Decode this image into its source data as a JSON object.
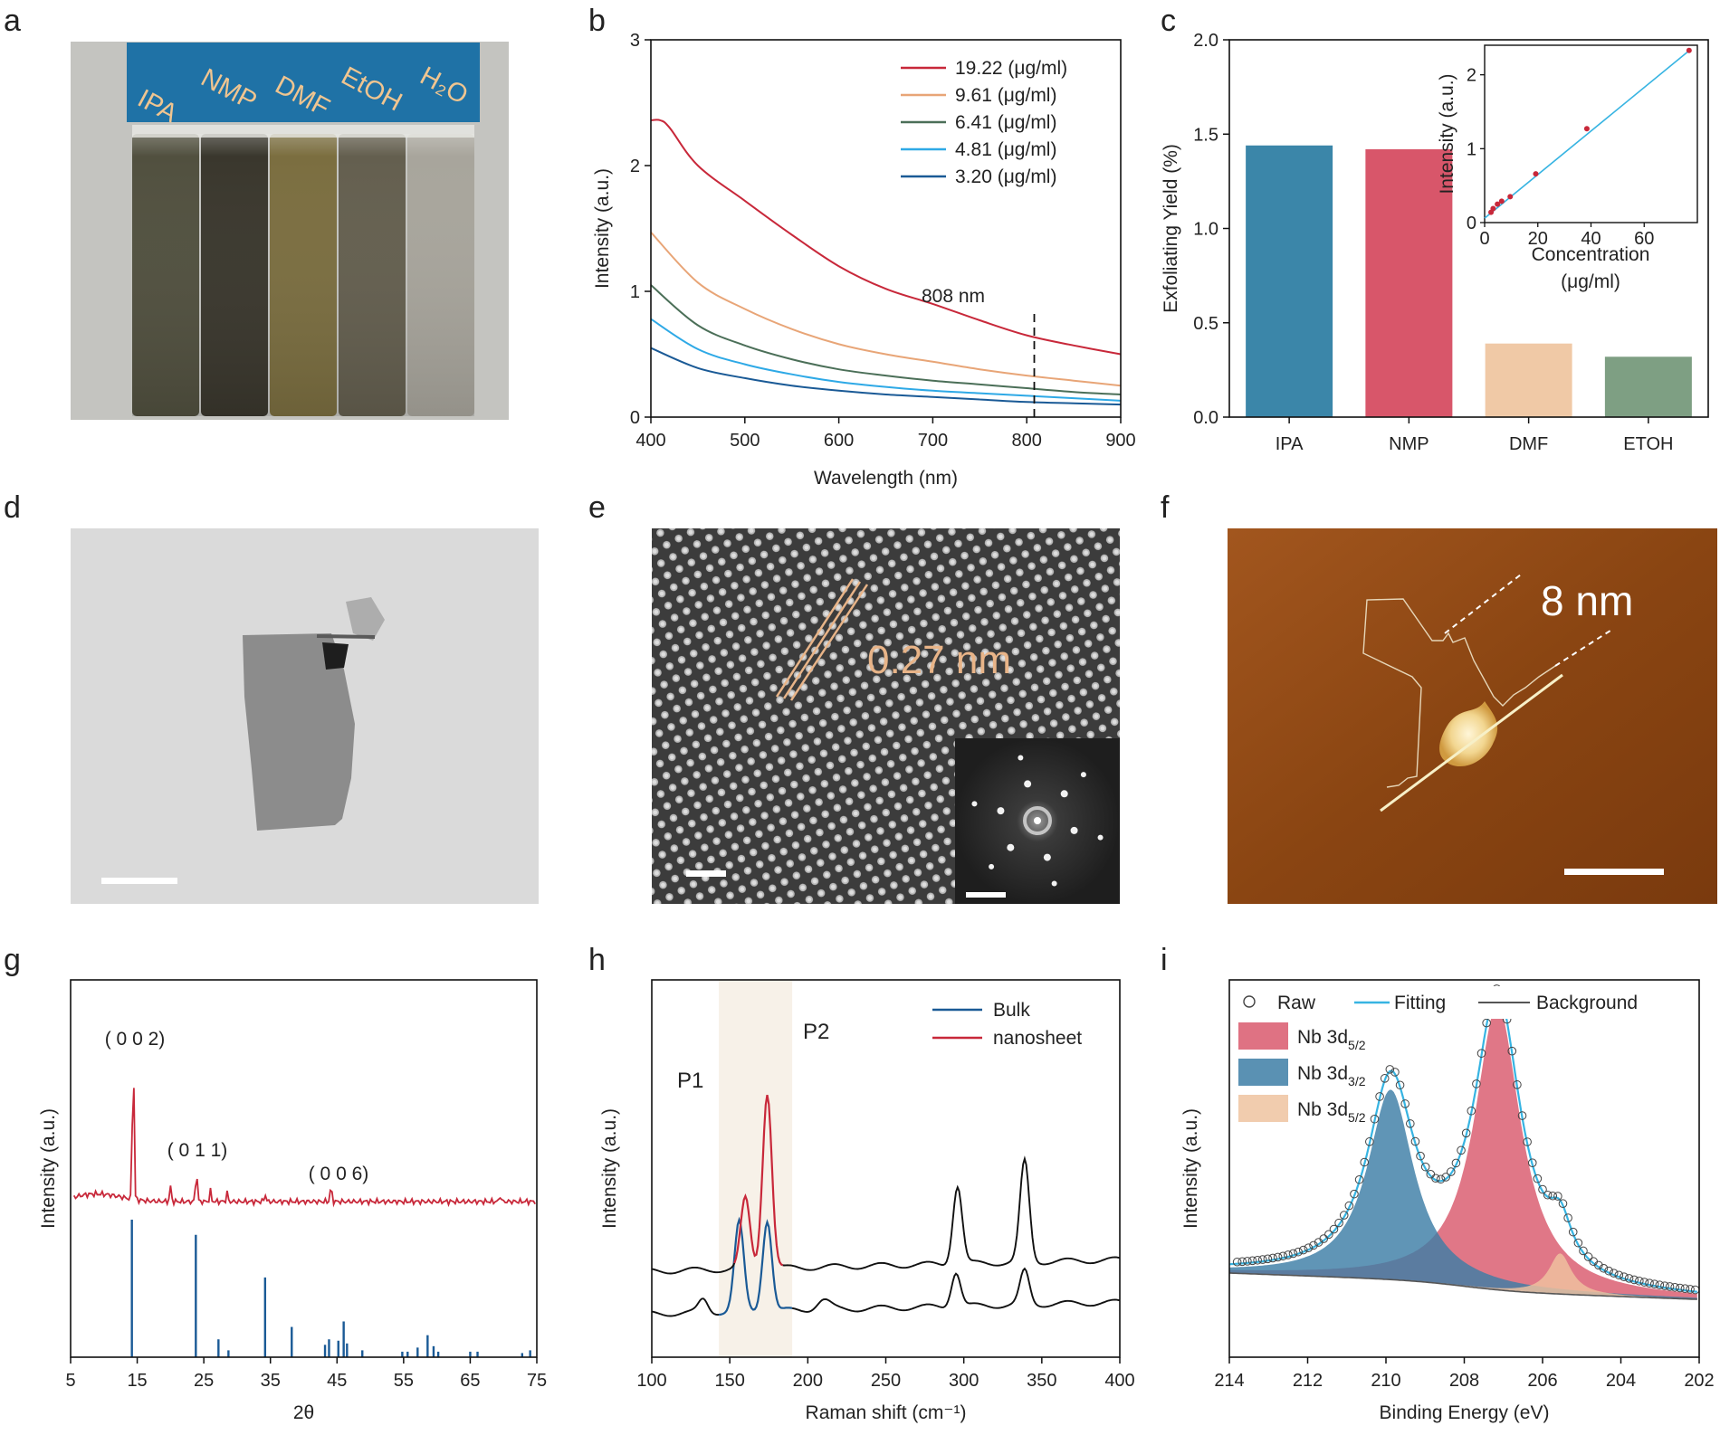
{
  "panels": {
    "a": {
      "label": "a",
      "solvents": [
        "IPA",
        "NMP",
        "DMF",
        "EtOH",
        "H₂O"
      ]
    },
    "d": {
      "label": "d"
    },
    "e": {
      "label": "e",
      "annotation": "0.27 nm"
    },
    "f": {
      "label": "f",
      "annotation": "8 nm"
    }
  },
  "colors": {
    "red": "#c8283a",
    "peach": "#e8a577",
    "green": "#4b6f58",
    "lightblue": "#2ea9e6",
    "blue": "#1a5a96",
    "bar_ipa": "#3b86a9",
    "bar_nmp": "#d8566a",
    "bar_dmf": "#f0c9a6",
    "bar_etoh": "#7e9f83",
    "fit": "#37b4e2",
    "xps_red": "#d9596d",
    "xps_blue": "#3d7ea6",
    "xps_peach": "#efc3a0"
  },
  "chart_data": [
    {
      "id": "b",
      "panel_label": "b",
      "type": "line",
      "xlabel": "Wavelength (nm)",
      "ylabel": "Intensity (a.u.)",
      "xlim": [
        400,
        900
      ],
      "ylim": [
        0,
        3
      ],
      "xticks": [
        400,
        500,
        600,
        700,
        800,
        900
      ],
      "yticks": [
        0,
        1,
        2,
        3
      ],
      "annotation": "808 nm",
      "marker_x": 808,
      "legend_position": "top-right",
      "series": [
        {
          "name": "19.22 (μg/ml)",
          "color": "#c8283a",
          "x": [
            400,
            410,
            420,
            450,
            500,
            550,
            600,
            650,
            700,
            750,
            800,
            850,
            900
          ],
          "y": [
            2.36,
            2.36,
            2.3,
            2.0,
            1.72,
            1.45,
            1.2,
            1.02,
            0.9,
            0.77,
            0.65,
            0.57,
            0.5
          ]
        },
        {
          "name": "9.61 (μg/ml)",
          "color": "#e8a577",
          "x": [
            400,
            450,
            500,
            550,
            600,
            650,
            700,
            750,
            800,
            850,
            900
          ],
          "y": [
            1.47,
            1.07,
            0.86,
            0.7,
            0.58,
            0.5,
            0.44,
            0.38,
            0.33,
            0.29,
            0.25
          ]
        },
        {
          "name": "6.41 (μg/ml)",
          "color": "#4b6f58",
          "x": [
            400,
            450,
            500,
            550,
            600,
            650,
            700,
            750,
            800,
            850,
            900
          ],
          "y": [
            1.05,
            0.73,
            0.57,
            0.46,
            0.38,
            0.33,
            0.29,
            0.26,
            0.23,
            0.2,
            0.18
          ]
        },
        {
          "name": "4.81 (μg/ml)",
          "color": "#2ea9e6",
          "x": [
            400,
            450,
            500,
            550,
            600,
            650,
            700,
            750,
            800,
            850,
            900
          ],
          "y": [
            0.78,
            0.54,
            0.42,
            0.34,
            0.28,
            0.24,
            0.21,
            0.19,
            0.17,
            0.15,
            0.13
          ]
        },
        {
          "name": "3.20 (μg/ml)",
          "color": "#1a5a96",
          "x": [
            400,
            450,
            500,
            550,
            600,
            650,
            700,
            750,
            800,
            850,
            900
          ],
          "y": [
            0.55,
            0.39,
            0.31,
            0.25,
            0.21,
            0.18,
            0.16,
            0.14,
            0.12,
            0.11,
            0.1
          ]
        }
      ]
    },
    {
      "id": "c",
      "panel_label": "c",
      "type": "bar",
      "ylabel": "Exfoliating Yield (%)",
      "categories": [
        "IPA",
        "NMP",
        "DMF",
        "ETOH"
      ],
      "values": [
        1.44,
        1.42,
        0.39,
        0.32
      ],
      "colors": [
        "#3b86a9",
        "#d8566a",
        "#f0c9a6",
        "#7e9f83"
      ],
      "ylim": [
        0,
        2.0
      ],
      "yticks": [
        "0.0",
        "0.5",
        "1.0",
        "1.5",
        "2.0"
      ],
      "inset": {
        "type": "scatter",
        "xlabel": [
          "Concentration",
          "(μg/ml)"
        ],
        "ylabel": "Intensity (a.u.)",
        "xlim": [
          0,
          80
        ],
        "ylim": [
          0,
          2.4
        ],
        "xticks": [
          0,
          20,
          40,
          60
        ],
        "yticks": [
          0,
          1,
          2
        ],
        "x": [
          2.4,
          3.2,
          4.81,
          6.41,
          9.61,
          19.22,
          38.44,
          76.88
        ],
        "y": [
          0.14,
          0.19,
          0.25,
          0.29,
          0.35,
          0.66,
          1.27,
          2.33
        ],
        "fit": [
          [
            0,
            0.06
          ],
          [
            77,
            2.33
          ]
        ]
      }
    },
    {
      "id": "g",
      "panel_label": "g",
      "type": "line",
      "xlabel": "2θ",
      "ylabel": "Intensity (a.u.)",
      "xlim": [
        5,
        75
      ],
      "xticks": [
        5,
        15,
        25,
        35,
        45,
        55,
        65,
        75
      ],
      "peak_labels": [
        {
          "text": "( 0 0 2)",
          "x": 14.5
        },
        {
          "text": "( 0 1 1)",
          "x": 23.8
        },
        {
          "text": "( 0 0 6)",
          "x": 44.0
        }
      ],
      "pattern_peaks": [
        {
          "x": 14.4,
          "h": 1.0
        },
        {
          "x": 20.0,
          "h": 0.1
        },
        {
          "x": 23.9,
          "h": 0.21
        },
        {
          "x": 26.0,
          "h": 0.07
        },
        {
          "x": 28.5,
          "h": 0.06
        },
        {
          "x": 34.2,
          "h": 0.05
        },
        {
          "x": 44.1,
          "h": 0.1
        },
        {
          "x": 69.5,
          "h": 0.04
        }
      ],
      "reference_lines": [
        {
          "x": 14.2,
          "h": 1.0
        },
        {
          "x": 23.8,
          "h": 0.89
        },
        {
          "x": 27.2,
          "h": 0.13
        },
        {
          "x": 28.7,
          "h": 0.05
        },
        {
          "x": 34.2,
          "h": 0.58
        },
        {
          "x": 38.2,
          "h": 0.22
        },
        {
          "x": 43.2,
          "h": 0.09
        },
        {
          "x": 43.8,
          "h": 0.13
        },
        {
          "x": 45.2,
          "h": 0.12
        },
        {
          "x": 46.0,
          "h": 0.26
        },
        {
          "x": 46.5,
          "h": 0.1
        },
        {
          "x": 48.8,
          "h": 0.05
        },
        {
          "x": 54.8,
          "h": 0.04
        },
        {
          "x": 55.6,
          "h": 0.04
        },
        {
          "x": 57.1,
          "h": 0.07
        },
        {
          "x": 58.6,
          "h": 0.16
        },
        {
          "x": 59.5,
          "h": 0.08
        },
        {
          "x": 60.2,
          "h": 0.04
        },
        {
          "x": 65.0,
          "h": 0.04
        },
        {
          "x": 66.1,
          "h": 0.04
        },
        {
          "x": 72.8,
          "h": 0.03
        },
        {
          "x": 74.0,
          "h": 0.05
        }
      ]
    },
    {
      "id": "h",
      "panel_label": "h",
      "type": "line",
      "xlabel": "Raman shift (cm⁻¹)",
      "ylabel": "Intensity (a.u.)",
      "xlim": [
        100,
        400
      ],
      "xticks": [
        100,
        150,
        200,
        250,
        300,
        350,
        400
      ],
      "highlight_range": [
        143,
        190
      ],
      "peak_labels": [
        "P1",
        "P2"
      ],
      "legend_position": "top-right",
      "series": [
        {
          "name": "Bulk",
          "color": "#1a5a96",
          "peaks": [
            {
              "x": 133,
              "h": 0.12
            },
            {
              "x": 156,
              "h": 0.82
            },
            {
              "x": 174,
              "h": 0.84
            },
            {
              "x": 295,
              "h": 0.32
            },
            {
              "x": 339,
              "h": 0.31
            }
          ]
        },
        {
          "name": "nanosheet",
          "color": "#c8283a",
          "peaks": [
            {
              "x": 160,
              "h": 0.65
            },
            {
              "x": 174,
              "h": 1.62
            },
            {
              "x": 296,
              "h": 0.72
            },
            {
              "x": 339,
              "h": 0.93
            }
          ]
        }
      ]
    },
    {
      "id": "i",
      "panel_label": "i",
      "type": "area",
      "xlabel": "Binding Energy (eV)",
      "ylabel": "Intensity (a.u.)",
      "xlim": [
        214,
        202
      ],
      "xticks": [
        214,
        212,
        210,
        208,
        206,
        204,
        202
      ],
      "legend": [
        "Raw",
        "Fitting",
        "Background"
      ],
      "components": [
        {
          "name": "Nb 3d",
          "sub": "5/2",
          "center": 207.15,
          "height": 0.84,
          "width": 0.72,
          "color": "#d9596d"
        },
        {
          "name": "Nb 3d",
          "sub": "3/2",
          "center": 209.88,
          "height": 0.56,
          "width": 0.72,
          "color": "#3d7ea6"
        },
        {
          "name": "Nb 3d",
          "sub": "5/2",
          "center": 205.55,
          "height": 0.12,
          "width": 0.35,
          "color": "#efc3a0"
        }
      ]
    }
  ]
}
